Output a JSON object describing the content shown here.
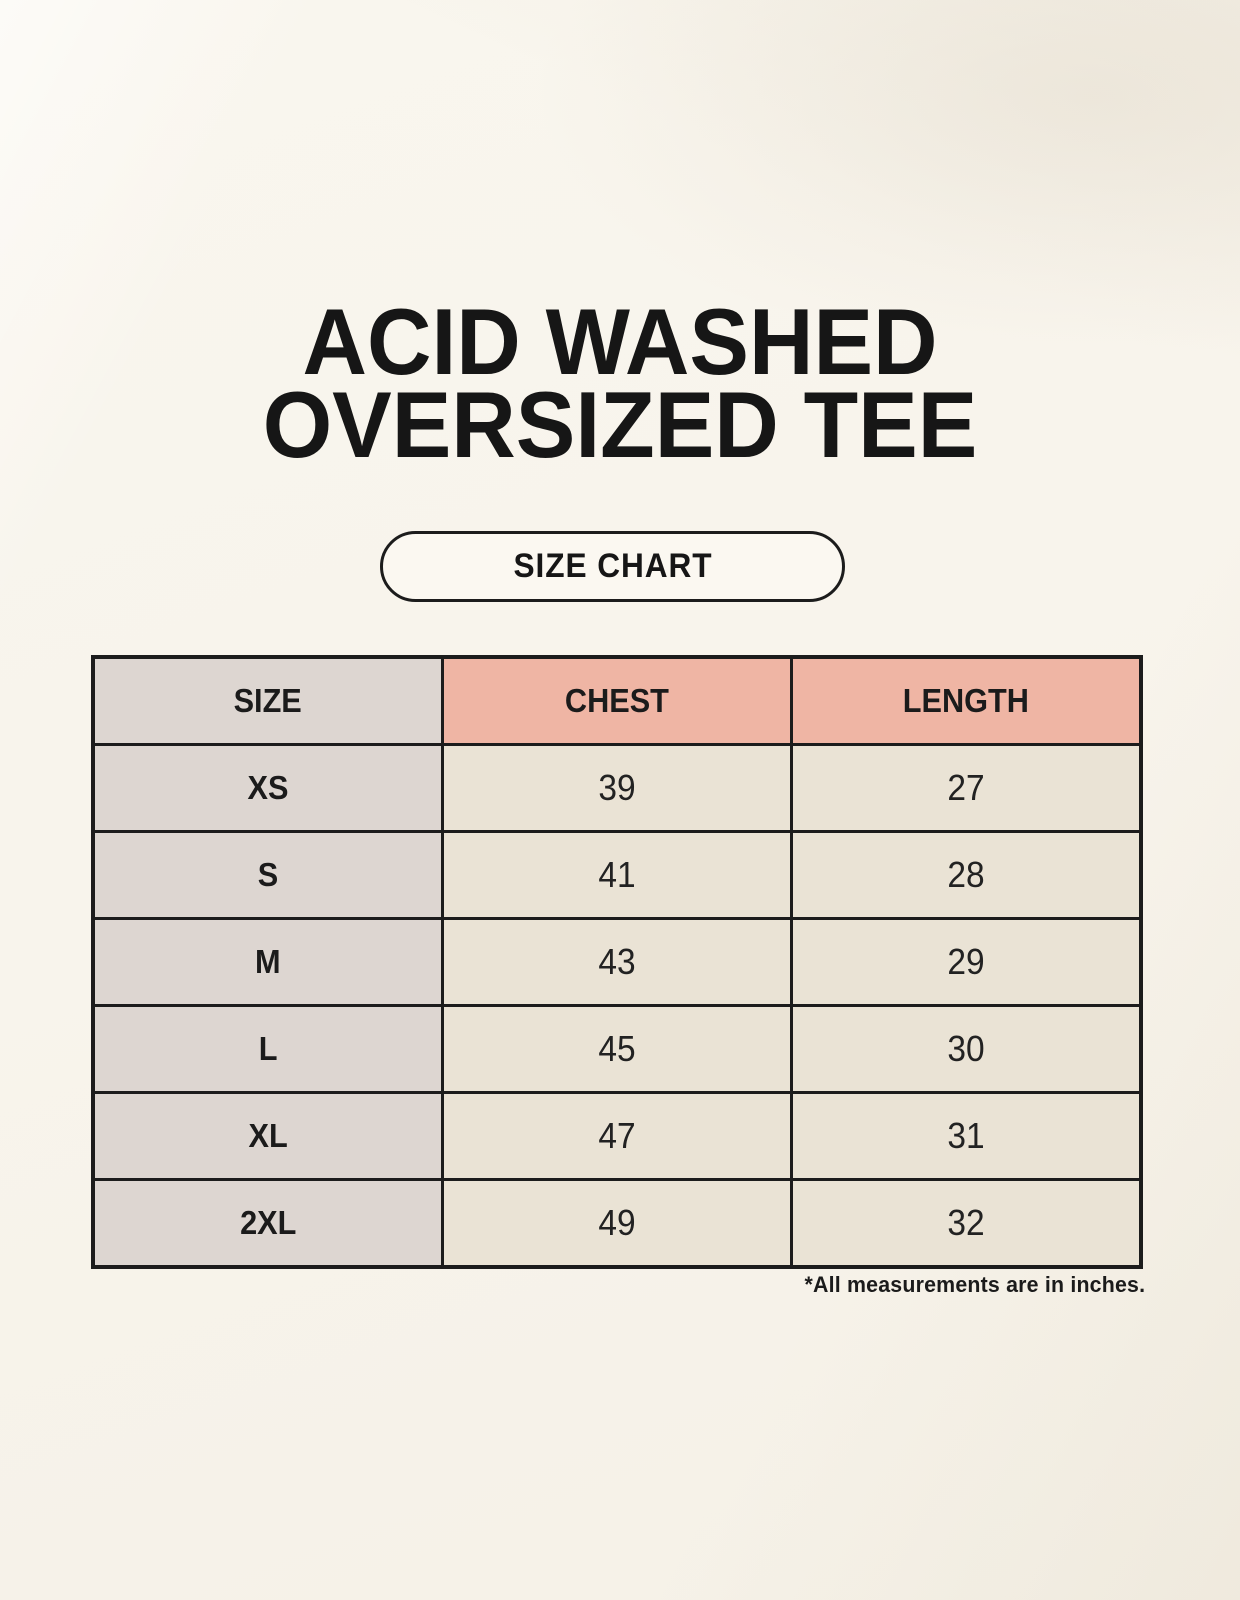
{
  "page": {
    "title_line1": "ACID WASHED",
    "title_line2": "OVERSIZED TEE",
    "size_chart_button_label": "SIZE CHART",
    "footnote": "*All measurements are in inches."
  },
  "table": {
    "headers": [
      "SIZE",
      "CHEST",
      "LENGTH"
    ],
    "rows": [
      {
        "size": "XS",
        "chest": "39",
        "length": "27"
      },
      {
        "size": "S",
        "chest": "41",
        "length": "28"
      },
      {
        "size": "M",
        "chest": "43",
        "length": "29"
      },
      {
        "size": "L",
        "chest": "45",
        "length": "30"
      },
      {
        "size": "XL",
        "chest": "47",
        "length": "31"
      },
      {
        "size": "2XL",
        "chest": "49",
        "length": "32"
      }
    ]
  },
  "chart_data": {
    "type": "table",
    "title": "ACID WASHED OVERSIZED TEE",
    "subtitle": "SIZE CHART",
    "columns": [
      "SIZE",
      "CHEST",
      "LENGTH"
    ],
    "rows": [
      [
        "XS",
        39,
        27
      ],
      [
        "S",
        41,
        28
      ],
      [
        "M",
        43,
        29
      ],
      [
        "L",
        45,
        30
      ],
      [
        "XL",
        47,
        31
      ],
      [
        "2XL",
        49,
        32
      ]
    ],
    "units": "inches",
    "note": "*All measurements are in inches."
  },
  "colors": {
    "background": "#f8f4ec",
    "header-measure-bg": "#efb5a4",
    "size-col-bg": "#ddd6d1",
    "cell-bg": "#eae3d5",
    "border": "#1c1c1c",
    "text": "#1b1b1b"
  }
}
